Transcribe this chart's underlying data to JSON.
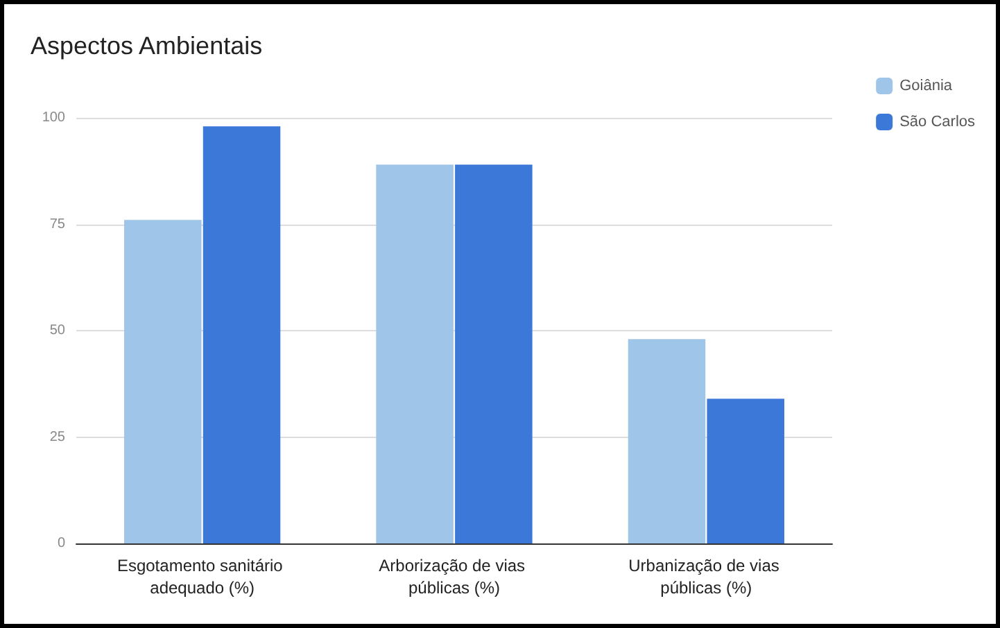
{
  "chart_data": {
    "type": "bar",
    "title": "Aspectos Ambientais",
    "categories": [
      "Esgotamento sanitário adequado (%)",
      "Arborização de vias públicas (%)",
      "Urbanização de vias públicas (%)"
    ],
    "series": [
      {
        "name": "Goiânia",
        "color": "#9fc5e8",
        "values": [
          76,
          89,
          48
        ]
      },
      {
        "name": "São Carlos",
        "color": "#3c78d8",
        "values": [
          98,
          89,
          34
        ]
      }
    ],
    "ylim": [
      0,
      100
    ],
    "yticks": [
      0,
      25,
      50,
      75,
      100
    ],
    "grid": "y",
    "legend": "top right"
  }
}
